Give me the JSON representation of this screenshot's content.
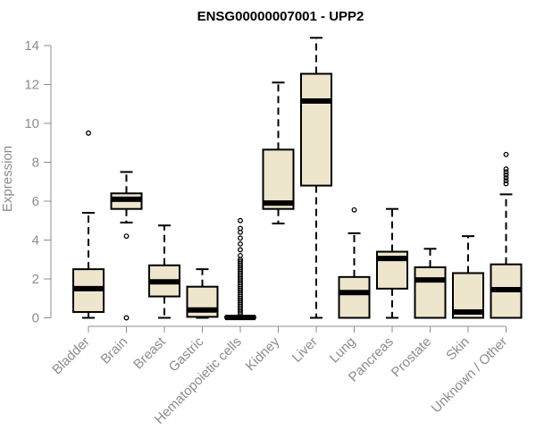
{
  "chart_data": {
    "type": "boxplot",
    "title": "ENSG00000007001 - UPP2",
    "xlabel": "",
    "ylabel": "Expression",
    "ylim": [
      0,
      14.5
    ],
    "yticks": [
      0,
      2,
      4,
      6,
      8,
      10,
      12,
      14
    ],
    "box_fill": "#ede6cc",
    "outline_color": "#000000",
    "axis_color": "#8c8c8c",
    "categories": [
      "Bladder",
      "Brain",
      "Breast",
      "Gastric",
      "Hematopoietic cells",
      "Kidney",
      "Liver",
      "Lung",
      "Pancreas",
      "Prostate",
      "Skin",
      "Unknown / Other"
    ],
    "boxes": [
      {
        "category": "Bladder",
        "whisker_low": 0.0,
        "q1": 0.3,
        "median": 1.5,
        "q3": 2.5,
        "whisker_high": 5.4,
        "outliers": [
          9.5
        ]
      },
      {
        "category": "Brain",
        "whisker_low": 4.9,
        "q1": 5.6,
        "median": 6.1,
        "q3": 6.4,
        "whisker_high": 7.5,
        "outliers": [
          4.2,
          0.0
        ]
      },
      {
        "category": "Breast",
        "whisker_low": 0.0,
        "q1": 1.1,
        "median": 1.85,
        "q3": 2.7,
        "whisker_high": 4.75,
        "outliers": []
      },
      {
        "category": "Gastric",
        "whisker_low": 0.0,
        "q1": 0.05,
        "median": 0.4,
        "q3": 1.6,
        "whisker_high": 2.5,
        "outliers": []
      },
      {
        "category": "Hematopoietic cells",
        "whisker_low": 0.0,
        "q1": 0.0,
        "median": 0.02,
        "q3": 0.05,
        "whisker_high": 0.1,
        "outliers": [
          0.2,
          0.3,
          0.4,
          0.5,
          0.6,
          0.7,
          0.8,
          0.9,
          1.0,
          1.1,
          1.2,
          1.3,
          1.4,
          1.5,
          1.6,
          1.7,
          1.8,
          1.9,
          2.0,
          2.1,
          2.2,
          2.3,
          2.4,
          2.5,
          2.6,
          2.7,
          2.8,
          2.9,
          3.0,
          3.2,
          3.5,
          3.8,
          4.1,
          4.4,
          4.6,
          5.0
        ]
      },
      {
        "category": "Kidney",
        "whisker_low": 4.85,
        "q1": 5.6,
        "median": 5.9,
        "q3": 8.65,
        "whisker_high": 12.1,
        "outliers": []
      },
      {
        "category": "Liver",
        "whisker_low": 0.0,
        "q1": 6.8,
        "median": 11.15,
        "q3": 12.55,
        "whisker_high": 14.4,
        "outliers": []
      },
      {
        "category": "Lung",
        "whisker_low": 0.0,
        "q1": 0.0,
        "median": 1.3,
        "q3": 2.1,
        "whisker_high": 4.35,
        "outliers": [
          5.55
        ]
      },
      {
        "category": "Pancreas",
        "whisker_low": 0.0,
        "q1": 1.5,
        "median": 3.05,
        "q3": 3.4,
        "whisker_high": 5.6,
        "outliers": []
      },
      {
        "category": "Prostate",
        "whisker_low": 0.0,
        "q1": 0.0,
        "median": 1.95,
        "q3": 2.6,
        "whisker_high": 3.55,
        "outliers": []
      },
      {
        "category": "Skin",
        "whisker_low": 0.0,
        "q1": 0.0,
        "median": 0.3,
        "q3": 2.3,
        "whisker_high": 4.2,
        "outliers": []
      },
      {
        "category": "Unknown / Other",
        "whisker_low": 0.0,
        "q1": 0.0,
        "median": 1.45,
        "q3": 2.75,
        "whisker_high": 6.35,
        "outliers": [
          6.9,
          7.05,
          7.2,
          7.35,
          7.5,
          7.65,
          8.4
        ]
      }
    ]
  }
}
